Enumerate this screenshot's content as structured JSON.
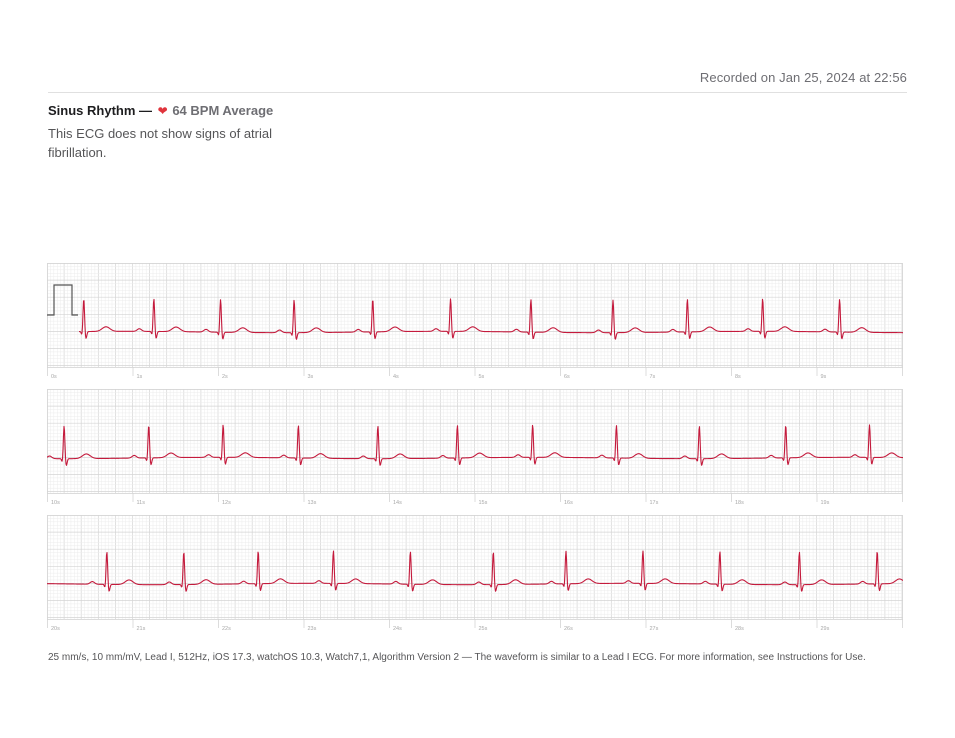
{
  "header": {
    "recorded": "Recorded on Jan 25, 2024 at 22:56"
  },
  "summary": {
    "rhythm": "Sinus Rhythm —",
    "heart_icon": "heart-icon",
    "bpm": "64 BPM Average",
    "description": "This ECG does not show signs of atrial fibrillation."
  },
  "colors": {
    "waveform": "#c41a3c",
    "grid_minor": "#ececec",
    "grid_major": "#d4d4d4",
    "heart": "#e0343c"
  },
  "chart_data": {
    "type": "line",
    "title": "",
    "xlabel": "",
    "ylabel": "",
    "seconds_per_strip": 10,
    "strips": [
      {
        "range": [
          0,
          10
        ],
        "tick_labels": [
          "0s",
          "1s",
          "2s",
          "3s",
          "4s",
          "5s",
          "6s",
          "7s",
          "8s",
          "9s"
        ],
        "beats_s": [
          0.43,
          1.25,
          2.03,
          2.89,
          3.81,
          4.72,
          5.66,
          6.62,
          7.49,
          8.37,
          9.27
        ]
      },
      {
        "range": [
          10,
          20
        ],
        "tick_labels": [
          "10s",
          "11s",
          "12s",
          "13s",
          "14s",
          "15s",
          "16s",
          "17s",
          "18s",
          "19s"
        ],
        "beats_s": [
          10.2,
          11.19,
          12.06,
          12.94,
          13.87,
          14.8,
          15.68,
          16.66,
          17.63,
          18.64,
          19.62
        ]
      },
      {
        "range": [
          20,
          30
        ],
        "tick_labels": [
          "20s",
          "21s",
          "22s",
          "23s",
          "24s",
          "25s",
          "26s",
          "27s",
          "28s",
          "29s"
        ],
        "beats_s": [
          20.7,
          21.6,
          22.47,
          23.35,
          24.25,
          25.22,
          26.07,
          26.97,
          27.87,
          28.8,
          29.71
        ]
      }
    ],
    "r_amplitude_mV": 1.0,
    "calibration_mV": 2.0,
    "grid": true
  },
  "footer": {
    "text": "25 mm/s, 10 mm/mV, Lead I, 512Hz, iOS 17.3, watchOS 10.3, Watch7,1, Algorithm Version 2 — The waveform is similar to a Lead I ECG. For more information, see Instructions for Use."
  }
}
